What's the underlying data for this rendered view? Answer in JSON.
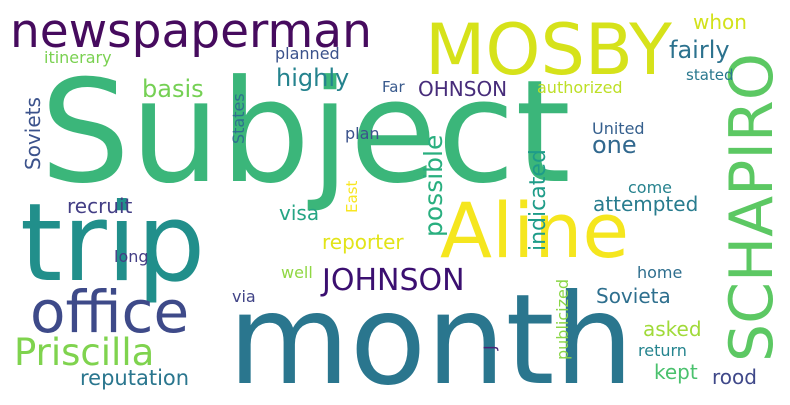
{
  "colors": {
    "background": "#ffffff",
    "palette": [
      "#440154",
      "#46327e",
      "#365c8d",
      "#277f8e",
      "#1fa187",
      "#4ac16d",
      "#a0da39",
      "#fde725"
    ]
  },
  "words": [
    {
      "text": "Subject",
      "color": "#3bb67a"
    },
    {
      "text": "month",
      "color": "#2a768e"
    },
    {
      "text": "trip",
      "color": "#218f8b"
    },
    {
      "text": "Aline",
      "color": "#f5e61e"
    },
    {
      "text": "MOSBY",
      "color": "#d6e21a"
    },
    {
      "text": "newspaperman",
      "color": "#460b5e"
    },
    {
      "text": "SCHAPIRO",
      "color": "#5cc863"
    },
    {
      "text": "office",
      "color": "#3e4a89"
    },
    {
      "text": "Priscilla",
      "color": "#7fd34e"
    },
    {
      "text": "JOHNSON",
      "color": "#3b0f70"
    },
    {
      "text": "possible",
      "color": "#29af7f"
    },
    {
      "text": "fairly",
      "color": "#2c728e"
    },
    {
      "text": "highly",
      "color": "#25838e"
    },
    {
      "text": "basis",
      "color": "#75d054"
    },
    {
      "text": "OHNSON",
      "color": "#472c7a"
    },
    {
      "text": "Soviets",
      "color": "#3b528b"
    },
    {
      "text": "one",
      "color": "#31688e"
    },
    {
      "text": "indicated",
      "color": "#1e9c89"
    },
    {
      "text": "attempted",
      "color": "#287c8e"
    },
    {
      "text": "recruit",
      "color": "#433e85"
    },
    {
      "text": "visa",
      "color": "#25a584"
    },
    {
      "text": "reporter",
      "color": "#e2e418"
    },
    {
      "text": "Sovieta",
      "color": "#2e6f8e"
    },
    {
      "text": "asked",
      "color": "#a0da39"
    },
    {
      "text": "reputation",
      "color": "#2a768e"
    },
    {
      "text": "kept",
      "color": "#4ac16d"
    },
    {
      "text": "rood",
      "color": "#3f4889"
    },
    {
      "text": "whon",
      "color": "#d2e21b"
    },
    {
      "text": "itinerary",
      "color": "#7ad151"
    },
    {
      "text": "planned",
      "color": "#3b528b"
    },
    {
      "text": "stated",
      "color": "#2a788e"
    },
    {
      "text": "authorized",
      "color": "#bddf26"
    },
    {
      "text": "Far",
      "color": "#38598c"
    },
    {
      "text": "States",
      "color": "#2d718e"
    },
    {
      "text": "plan",
      "color": "#3b528b"
    },
    {
      "text": "United",
      "color": "#355f8d"
    },
    {
      "text": "East",
      "color": "#f8e621"
    },
    {
      "text": "come",
      "color": "#26828e"
    },
    {
      "text": "long",
      "color": "#433d84"
    },
    {
      "text": "well",
      "color": "#90d743"
    },
    {
      "text": "home",
      "color": "#2e6e8e"
    },
    {
      "text": "via",
      "color": "#414487"
    },
    {
      "text": "J",
      "color": "#482475"
    },
    {
      "text": "publicized",
      "color": "#8bd646"
    },
    {
      "text": "return",
      "color": "#25848e"
    }
  ]
}
